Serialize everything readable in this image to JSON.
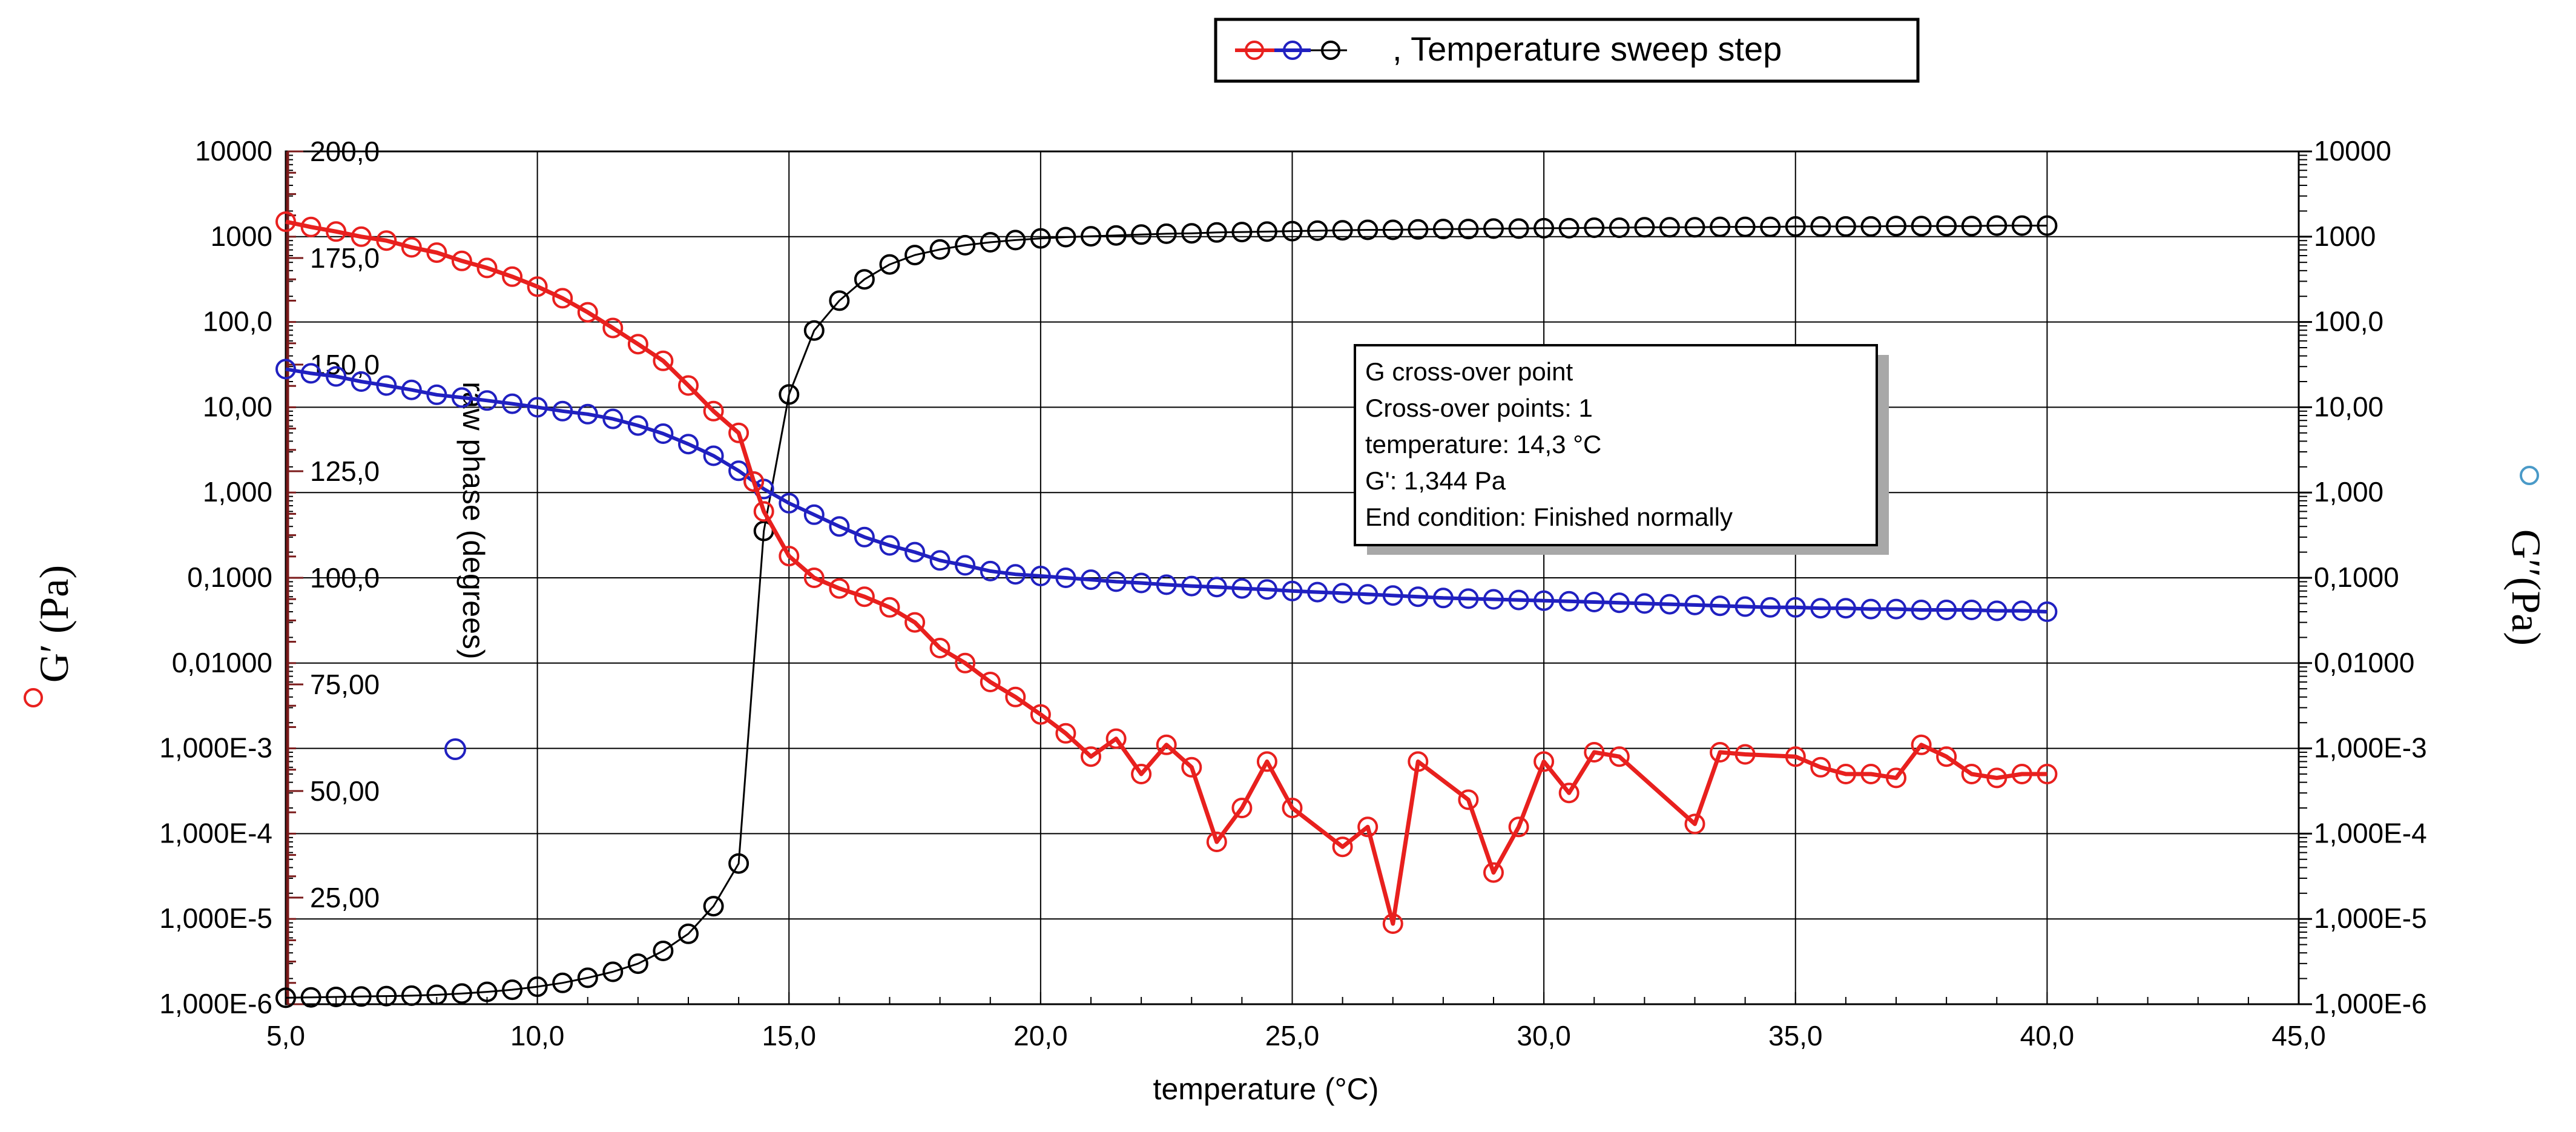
{
  "chart_data": {
    "type": "line",
    "legend": {
      "text": ", Temperature sweep step",
      "placement": "top-center"
    },
    "xlabel": "temperature (°C)",
    "xlim": [
      5,
      45
    ],
    "x_ticks": [
      "5,0",
      "10,0",
      "15,0",
      "20,0",
      "25,0",
      "30,0",
      "35,0",
      "40,0",
      "45,0"
    ],
    "y_left_label": "G′ (Pa)",
    "y_right_label": "G′′(Pa)",
    "y_log_range": [
      -6,
      4
    ],
    "y_ticks": [
      "1,000E-6",
      "1,000E-5",
      "1,000E-4",
      "1,000E-3",
      "0,01000",
      "0,1000",
      "1,000",
      "10,00",
      "100,0",
      "1000",
      "10000"
    ],
    "phase_label": "raw phase (degrees)",
    "phase_range": [
      0,
      200
    ],
    "phase_ticks": [
      "25,00",
      "50,00",
      "75,00",
      "100,0",
      "125,0",
      "150,0",
      "175,0",
      "200,0"
    ],
    "info_box": [
      "G cross-over point",
      "Cross-over points: 1",
      "temperature: 14,3 °C",
      "G': 1,344 Pa",
      "End condition: Finished normally"
    ],
    "colors": {
      "G_prime": "#e8201e",
      "G_double_prime": "#2020c0",
      "phase": "#000000"
    },
    "series": [
      {
        "name": "G'",
        "axis": "left-log",
        "x": [
          5.0,
          5.5,
          6.0,
          6.5,
          7.0,
          7.5,
          8.0,
          8.5,
          9.0,
          9.5,
          10.0,
          10.5,
          11.0,
          11.5,
          12.0,
          12.5,
          13.0,
          13.5,
          14.0,
          14.3,
          14.5,
          15.0,
          15.5,
          16.0,
          16.5,
          17.0,
          17.5,
          18.0,
          18.5,
          19.0,
          19.5,
          20.0,
          20.5,
          21.0,
          21.5,
          22.0,
          22.5,
          23.0,
          23.5,
          24.0,
          24.5,
          25.0,
          26.0,
          26.5,
          27.0,
          27.5,
          28.5,
          29.0,
          29.5,
          30.0,
          30.5,
          31.0,
          31.5,
          33.0,
          33.5,
          34.0,
          35.0,
          35.5,
          36.0,
          36.5,
          37.0,
          37.5,
          38.0,
          38.5,
          39.0,
          39.5,
          40.0
        ],
        "values": [
          1500,
          1300,
          1150,
          1000,
          900,
          750,
          650,
          520,
          430,
          340,
          260,
          190,
          130,
          85,
          55,
          35,
          18,
          9,
          5,
          1.344,
          0.6,
          0.18,
          0.1,
          0.075,
          0.06,
          0.045,
          0.03,
          0.015,
          0.01,
          0.006,
          0.004,
          0.0025,
          0.0015,
          0.0008,
          0.0013,
          0.0005,
          0.0011,
          0.0006,
          8e-05,
          0.0002,
          0.0007,
          0.0002,
          7e-05,
          0.00012,
          8.8e-06,
          0.0007,
          0.00025,
          3.5e-05,
          0.00012,
          0.0007,
          0.0003,
          0.0009,
          0.0008,
          0.00013,
          0.0009,
          0.00085,
          0.0008,
          0.0006,
          0.0005,
          0.0005,
          0.00045,
          0.0011,
          0.0008,
          0.0005,
          0.00045,
          0.0005,
          0.0005
        ]
      },
      {
        "name": "G''",
        "axis": "left-log",
        "x": [
          5.0,
          5.5,
          6.0,
          6.5,
          7.0,
          7.5,
          8.0,
          8.5,
          9.0,
          9.5,
          10.0,
          10.5,
          11.0,
          11.5,
          12.0,
          12.5,
          13.0,
          13.5,
          14.0,
          14.3,
          14.5,
          15.0,
          15.5,
          16.0,
          16.5,
          17.0,
          17.5,
          18.0,
          18.5,
          19.0,
          19.5,
          20.0,
          20.5,
          21.0,
          21.5,
          22.0,
          22.5,
          23.0,
          23.5,
          24.0,
          24.5,
          25.0,
          25.5,
          26.0,
          26.5,
          27.0,
          27.5,
          28.0,
          28.5,
          29.0,
          29.5,
          30.0,
          30.5,
          31.0,
          31.5,
          32.0,
          32.5,
          33.0,
          33.5,
          34.0,
          34.5,
          35.0,
          35.5,
          36.0,
          36.5,
          37.0,
          37.5,
          38.0,
          38.5,
          39.0,
          39.5,
          40.0
        ],
        "values": [
          28,
          25,
          23,
          20,
          18,
          16,
          14,
          13,
          12,
          11,
          10,
          9,
          8.3,
          7.3,
          6.1,
          4.9,
          3.7,
          2.7,
          1.8,
          1.344,
          1.1,
          0.75,
          0.55,
          0.4,
          0.3,
          0.24,
          0.2,
          0.16,
          0.14,
          0.12,
          0.11,
          0.105,
          0.1,
          0.095,
          0.09,
          0.087,
          0.083,
          0.08,
          0.078,
          0.075,
          0.073,
          0.07,
          0.068,
          0.066,
          0.064,
          0.062,
          0.06,
          0.058,
          0.057,
          0.056,
          0.055,
          0.054,
          0.053,
          0.052,
          0.051,
          0.05,
          0.049,
          0.048,
          0.047,
          0.046,
          0.045,
          0.045,
          0.044,
          0.044,
          0.043,
          0.043,
          0.042,
          0.042,
          0.042,
          0.041,
          0.041,
          0.04
        ]
      },
      {
        "name": "raw phase",
        "axis": "right-linear",
        "x": [
          5.0,
          5.5,
          6.0,
          6.5,
          7.0,
          7.5,
          8.0,
          8.5,
          9.0,
          9.5,
          10.0,
          10.5,
          11.0,
          11.5,
          12.0,
          12.5,
          13.0,
          13.5,
          14.0,
          14.5,
          15.0,
          15.5,
          16.0,
          16.5,
          17.0,
          17.5,
          18.0,
          18.5,
          19.0,
          19.5,
          20.0,
          20.5,
          21.0,
          21.5,
          22.0,
          22.5,
          23.0,
          23.5,
          24.0,
          24.5,
          25.0,
          25.5,
          26.0,
          26.5,
          27.0,
          27.5,
          28.0,
          28.5,
          29.0,
          29.5,
          30.0,
          30.5,
          31.0,
          31.5,
          32.0,
          32.5,
          33.0,
          33.5,
          34.0,
          34.5,
          35.0,
          35.5,
          36.0,
          36.5,
          37.0,
          37.5,
          38.0,
          38.5,
          39.0,
          39.5,
          40.0
        ],
        "values": [
          1.5,
          1.6,
          1.7,
          1.8,
          1.9,
          2.0,
          2.2,
          2.5,
          2.9,
          3.4,
          4.1,
          5,
          6.2,
          7.6,
          9.5,
          12.5,
          16.5,
          23,
          33,
          111,
          143,
          158,
          165,
          170,
          173.5,
          175.7,
          177,
          178,
          178.7,
          179.2,
          179.6,
          179.9,
          180.1,
          180.3,
          180.5,
          180.7,
          180.8,
          181.0,
          181.1,
          181.2,
          181.3,
          181.4,
          181.5,
          181.6,
          181.6,
          181.7,
          181.8,
          181.8,
          181.9,
          181.9,
          182.0,
          182.0,
          182.1,
          182.1,
          182.2,
          182.2,
          182.2,
          182.3,
          182.3,
          182.3,
          182.4,
          182.4,
          182.4,
          182.4,
          182.5,
          182.5,
          182.5,
          182.5,
          182.6,
          182.6,
          182.6
        ]
      }
    ]
  }
}
